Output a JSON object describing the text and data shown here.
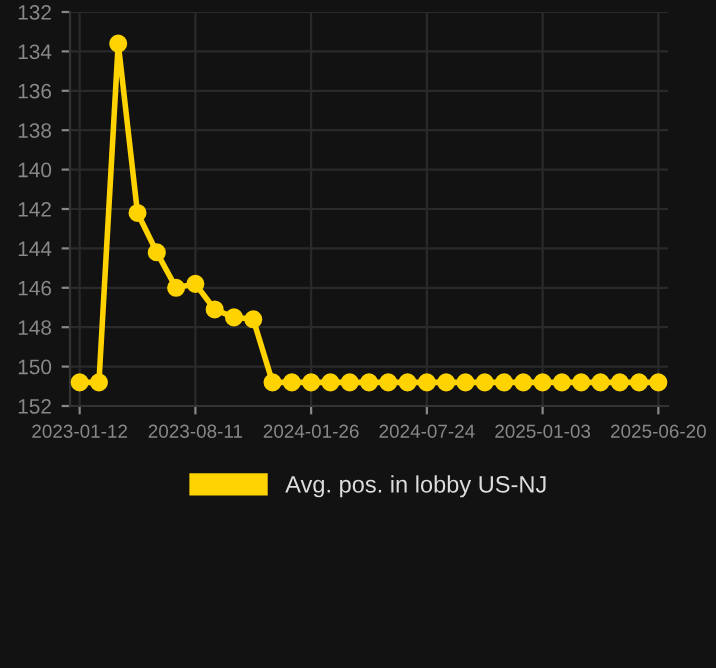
{
  "chart_data": {
    "type": "line",
    "categories": [
      "2023-01-12",
      null,
      null,
      null,
      null,
      null,
      "2023-08-11",
      null,
      null,
      null,
      null,
      null,
      "2024-01-26",
      null,
      null,
      null,
      null,
      null,
      "2024-07-24",
      null,
      null,
      null,
      null,
      null,
      "2025-01-03",
      null,
      null,
      null,
      null,
      null,
      "2025-06-20"
    ],
    "series": [
      {
        "name": "Avg. pos. in lobby US-NJ",
        "color": "#ffd300",
        "values": [
          150.8,
          150.8,
          133.6,
          142.2,
          144.2,
          146.0,
          145.8,
          147.1,
          147.5,
          147.6,
          150.8,
          150.8,
          150.8,
          150.8,
          150.8,
          150.8,
          150.8,
          150.8,
          150.8,
          150.8,
          150.8,
          150.8,
          150.8,
          150.8,
          150.8,
          150.8,
          150.8,
          150.8,
          150.8,
          150.8,
          150.8
        ]
      }
    ],
    "ylim": [
      152,
      132
    ],
    "yticks": [
      132,
      134,
      136,
      138,
      140,
      142,
      144,
      146,
      148,
      150,
      152
    ],
    "grid": true,
    "legend": "bottom",
    "marker": "circle",
    "line_style": "solid"
  }
}
